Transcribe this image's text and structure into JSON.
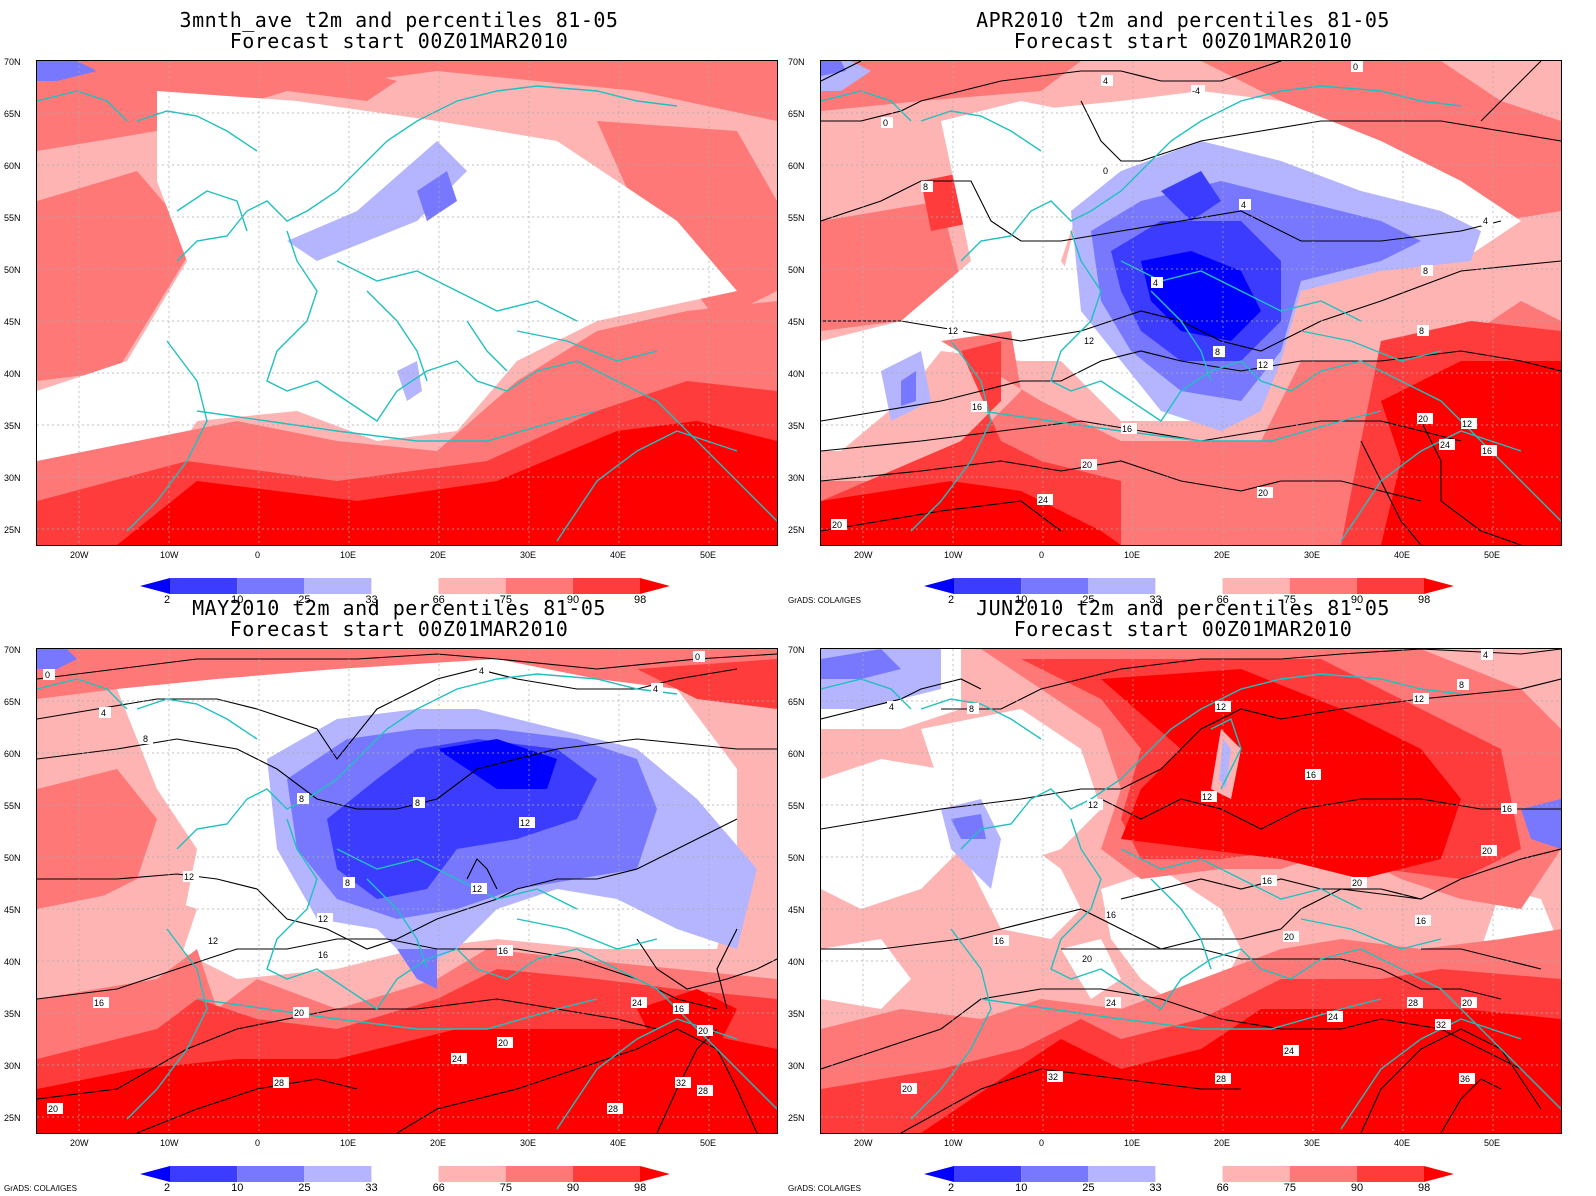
{
  "panels": [
    {
      "title_line1": "3mnth_ave t2m and percentiles 81-05",
      "title_line2": "Forecast start 00Z01MAR2010",
      "credit": ""
    },
    {
      "title_line1": "APR2010 t2m and percentiles 81-05",
      "title_line2": "Forecast start 00Z01MAR2010",
      "credit": "GrADS: COLA/IGES"
    },
    {
      "title_line1": "MAY2010 t2m and percentiles 81-05",
      "title_line2": "Forecast start 00Z01MAR2010",
      "credit": "GrADS: COLA/IGES"
    },
    {
      "title_line1": "JUN2010 t2m and percentiles 81-05",
      "title_line2": "Forecast start 00Z01MAR2010",
      "credit": "GrADS: COLA/IGES"
    }
  ],
  "lat_labels": [
    "70N",
    "65N",
    "60N",
    "55N",
    "50N",
    "45N",
    "40N",
    "35N",
    "30N",
    "25N"
  ],
  "lon_labels": [
    "20W",
    "10W",
    "0",
    "10E",
    "20E",
    "30E",
    "40E",
    "50E"
  ],
  "colorbar": {
    "labels": [
      "2",
      "10",
      "25",
      "33",
      "66",
      "75",
      "90",
      "98"
    ],
    "colors": [
      "#0000ff",
      "#3c3cff",
      "#7878ff",
      "#b4b4ff",
      "#ffffff",
      "#ffb4b4",
      "#ff7878",
      "#ff3c3c",
      "#ff0000"
    ]
  },
  "colors": {
    "coast": "#20c0c0",
    "contour": "#000000",
    "warm_light": "#ffb4b4",
    "warm_mid": "#ff7878",
    "warm_strong": "#ff3c3c",
    "warm_max": "#ff0000",
    "cold_light": "#b4b4ff",
    "cold_mid": "#7878ff",
    "cold_strong": "#3c3cff",
    "cold_max": "#0000ff"
  },
  "contour_labels": {
    "apr": [
      "4",
      "0",
      "-4",
      "0",
      "4",
      "8",
      "4",
      "8",
      "12",
      "16",
      "12",
      "16",
      "20",
      "24",
      "20",
      "4",
      "8",
      "8",
      "12",
      "20",
      "24",
      "16",
      "12",
      "20",
      "0"
    ],
    "may": [
      "4",
      "0",
      "8",
      "4",
      "8",
      "8",
      "12",
      "12",
      "12",
      "8",
      "12",
      "16",
      "16",
      "20",
      "24",
      "20",
      "24",
      "16",
      "20",
      "28",
      "28",
      "32",
      "28",
      "12",
      "4",
      "0",
      "16",
      "20"
    ],
    "jun": [
      "4",
      "8",
      "12",
      "12",
      "12",
      "16",
      "16",
      "20",
      "16",
      "16",
      "20",
      "20",
      "24",
      "24",
      "28",
      "20",
      "32",
      "28",
      "24",
      "32",
      "36",
      "16",
      "20",
      "12",
      "4",
      "8",
      "16",
      "20"
    ]
  }
}
